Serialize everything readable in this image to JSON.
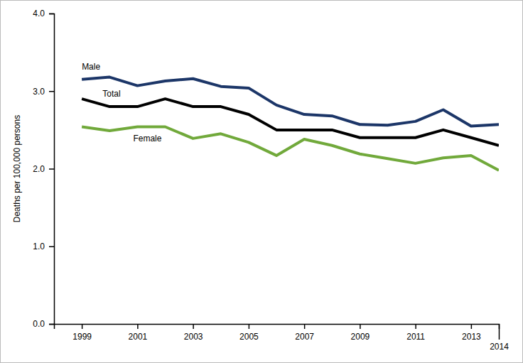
{
  "chart_data": {
    "type": "line",
    "y_label": "Deaths per 100,000 persons",
    "x": [
      1999,
      2000,
      2001,
      2002,
      2003,
      2004,
      2005,
      2006,
      2007,
      2008,
      2009,
      2010,
      2011,
      2012,
      2013,
      2014
    ],
    "series": [
      {
        "name": "Male",
        "color": "#1c3668",
        "values": [
          3.15,
          3.18,
          3.07,
          3.13,
          3.16,
          3.06,
          3.04,
          2.82,
          2.7,
          2.68,
          2.57,
          2.56,
          2.61,
          2.76,
          2.55,
          2.57
        ]
      },
      {
        "name": "Total",
        "color": "#000000",
        "values": [
          2.9,
          2.8,
          2.8,
          2.9,
          2.8,
          2.8,
          2.7,
          2.5,
          2.5,
          2.5,
          2.4,
          2.4,
          2.4,
          2.5,
          2.4,
          2.3
        ]
      },
      {
        "name": "Female",
        "color": "#71a93b",
        "values": [
          2.54,
          2.49,
          2.54,
          2.54,
          2.39,
          2.45,
          2.34,
          2.17,
          2.38,
          2.3,
          2.19,
          2.13,
          2.07,
          2.14,
          2.17,
          1.98
        ]
      }
    ],
    "xlim": [
      1998,
      2014
    ],
    "xticks": [
      1999,
      2001,
      2003,
      2005,
      2007,
      2009,
      2011,
      2013,
      2014
    ],
    "ylim": [
      0,
      4
    ],
    "yticks": [
      {
        "value": 0,
        "label": "0.0"
      },
      {
        "value": 1,
        "label": "1.0"
      },
      {
        "value": 2,
        "label": "2.0"
      },
      {
        "value": 3,
        "label": "3.0"
      },
      {
        "value": 4,
        "label": "4.0"
      }
    ],
    "grid": false
  }
}
